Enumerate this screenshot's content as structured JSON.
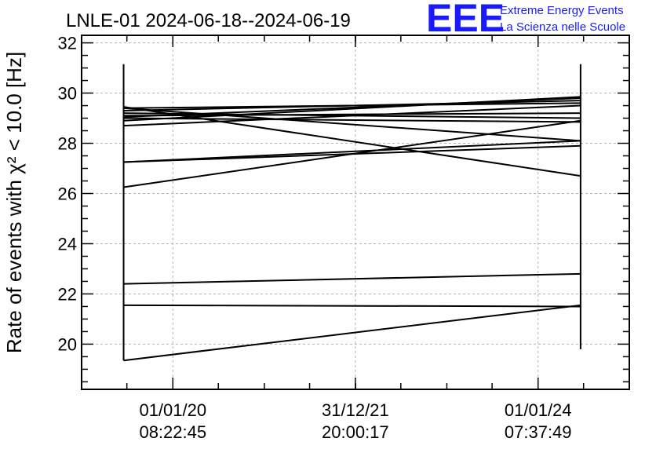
{
  "chart_data": {
    "type": "line",
    "title": "LNLE-01 2024-06-18--2024-06-19",
    "ylabel": "Rate of events with χ² < 10.0 [Hz]",
    "xlabel": "",
    "ylim": [
      18.2,
      32.3
    ],
    "y_ticks": [
      20,
      22,
      24,
      26,
      28,
      30,
      32
    ],
    "x_ticks": [
      {
        "date": "01/01/20",
        "time": "08:22:45"
      },
      {
        "date": "31/12/21",
        "time": "20:00:17"
      },
      {
        "date": "01/01/24",
        "time": "07:37:49"
      }
    ],
    "x_range": [
      "2019-01-01",
      "2024-12-31"
    ],
    "x_start": "2019-06-18",
    "x_end": "2024-06-19",
    "grid": true,
    "lines": [
      {
        "y1": 19.35,
        "y2": 21.55
      },
      {
        "y1": 21.55,
        "y2": 21.5
      },
      {
        "y1": 22.4,
        "y2": 22.8
      },
      {
        "y1": 26.25,
        "y2": 28.9
      },
      {
        "y1": 27.25,
        "y2": 27.9
      },
      {
        "y1": 27.25,
        "y2": 28.1
      },
      {
        "y1": 28.7,
        "y2": 29.5
      },
      {
        "y1": 29.45,
        "y2": 26.7
      },
      {
        "y1": 29.4,
        "y2": 28.1
      },
      {
        "y1": 28.9,
        "y2": 29.85
      },
      {
        "y1": 29.4,
        "y2": 29.6
      },
      {
        "y1": 29.3,
        "y2": 29.7
      },
      {
        "y1": 29.2,
        "y2": 29.0
      },
      {
        "y1": 29.1,
        "y2": 29.2
      },
      {
        "y1": 29.05,
        "y2": 29.8
      },
      {
        "y1": 29.0,
        "y2": 28.85
      }
    ],
    "vlines": [
      {
        "ymin": 19.35,
        "ymax": 31.15
      },
      {
        "ymin": 19.8,
        "ymax": 31.15
      }
    ]
  },
  "logo": {
    "mark": "EEE",
    "line1": "Extreme Energy Events",
    "line2": "La Scienza nelle Scuole",
    "color": "#1a1aff"
  }
}
